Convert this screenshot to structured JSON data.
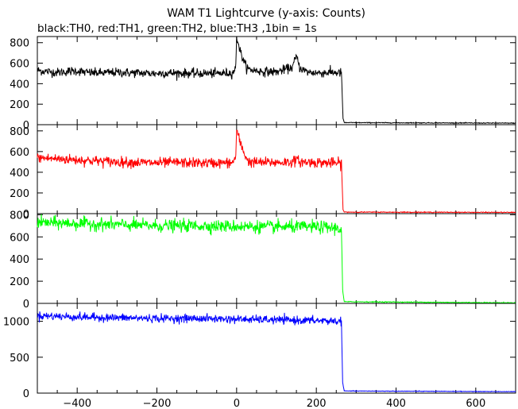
{
  "chart_data": {
    "type": "line",
    "title": "WAM T1 Lightcurve (y-axis: Counts)",
    "subtitle": "black:TH0, red:TH1, green:TH2, blue:TH3 ,1bin = 1s",
    "x_range": [
      -500,
      700
    ],
    "x_ticks": [
      -400,
      -200,
      0,
      200,
      400,
      600
    ],
    "x_tick_labels": [
      "−400",
      "−200",
      "0",
      "200",
      "400",
      "600"
    ],
    "grid": false,
    "legend": "none",
    "bin_seconds": 1,
    "panels": [
      {
        "channel": "TH0",
        "color": "#000000",
        "ylim": [
          0,
          860
        ],
        "yticks": [
          0,
          200,
          400,
          600,
          800
        ],
        "ytick_labels": [
          "0",
          "200",
          "400",
          "600",
          "800"
        ],
        "drop_time": 265,
        "profile": [
          [
            -500,
            530
          ],
          [
            -480,
            520
          ],
          [
            -450,
            510
          ],
          [
            -420,
            520
          ],
          [
            -400,
            525
          ],
          [
            -380,
            510
          ],
          [
            -350,
            505
          ],
          [
            -300,
            510
          ],
          [
            -250,
            505
          ],
          [
            -200,
            500
          ],
          [
            -150,
            505
          ],
          [
            -100,
            500
          ],
          [
            -50,
            500
          ],
          [
            -10,
            505
          ],
          [
            -2,
            560
          ],
          [
            0,
            850
          ],
          [
            3,
            820
          ],
          [
            8,
            730
          ],
          [
            15,
            650
          ],
          [
            22,
            580
          ],
          [
            30,
            540
          ],
          [
            60,
            520
          ],
          [
            100,
            515
          ],
          [
            140,
            560
          ],
          [
            150,
            670
          ],
          [
            158,
            560
          ],
          [
            175,
            515
          ],
          [
            200,
            505
          ],
          [
            240,
            510
          ],
          [
            263,
            505
          ],
          [
            267,
            60
          ],
          [
            270,
            20
          ],
          [
            700,
            15
          ]
        ],
        "noise_sd": 22
      },
      {
        "channel": "TH1",
        "color": "#ff0000",
        "ylim": [
          0,
          860
        ],
        "yticks": [
          0,
          200,
          400,
          600,
          800
        ],
        "ytick_labels": [
          "0",
          "200",
          "400",
          "600",
          "800"
        ],
        "drop_time": 265,
        "profile": [
          [
            -500,
            540
          ],
          [
            -450,
            530
          ],
          [
            -400,
            520
          ],
          [
            -350,
            510
          ],
          [
            -300,
            500
          ],
          [
            -250,
            495
          ],
          [
            -200,
            490
          ],
          [
            -150,
            495
          ],
          [
            -100,
            490
          ],
          [
            -50,
            490
          ],
          [
            -10,
            490
          ],
          [
            -2,
            560
          ],
          [
            0,
            810
          ],
          [
            3,
            760
          ],
          [
            8,
            700
          ],
          [
            15,
            620
          ],
          [
            22,
            560
          ],
          [
            30,
            500
          ],
          [
            60,
            495
          ],
          [
            100,
            495
          ],
          [
            140,
            500
          ],
          [
            150,
            520
          ],
          [
            160,
            500
          ],
          [
            200,
            495
          ],
          [
            240,
            490
          ],
          [
            263,
            485
          ],
          [
            267,
            40
          ],
          [
            270,
            15
          ],
          [
            700,
            12
          ]
        ],
        "noise_sd": 25
      },
      {
        "channel": "TH2",
        "color": "#00ff00",
        "ylim": [
          0,
          810
        ],
        "yticks": [
          0,
          200,
          400,
          600,
          800
        ],
        "ytick_labels": [
          "0",
          "200",
          "400",
          "600",
          "800"
        ],
        "drop_time": 265,
        "profile": [
          [
            -500,
            730
          ],
          [
            -400,
            720
          ],
          [
            -300,
            710
          ],
          [
            -200,
            700
          ],
          [
            -100,
            700
          ],
          [
            0,
            695
          ],
          [
            100,
            690
          ],
          [
            200,
            690
          ],
          [
            250,
            680
          ],
          [
            263,
            670
          ],
          [
            266,
            120
          ],
          [
            270,
            15
          ],
          [
            700,
            5
          ]
        ],
        "noise_sd": 28
      },
      {
        "channel": "TH3",
        "color": "#0000ff",
        "ylim": [
          0,
          1250
        ],
        "yticks": [
          0,
          500,
          1000
        ],
        "ytick_labels": [
          "0",
          "500",
          "1000"
        ],
        "drop_time": 265,
        "profile": [
          [
            -500,
            1080
          ],
          [
            -400,
            1060
          ],
          [
            -300,
            1050
          ],
          [
            -200,
            1040
          ],
          [
            -100,
            1040
          ],
          [
            0,
            1030
          ],
          [
            100,
            1020
          ],
          [
            200,
            1010
          ],
          [
            263,
            1000
          ],
          [
            266,
            150
          ],
          [
            270,
            30
          ],
          [
            700,
            20
          ]
        ],
        "noise_sd": 28
      }
    ]
  }
}
